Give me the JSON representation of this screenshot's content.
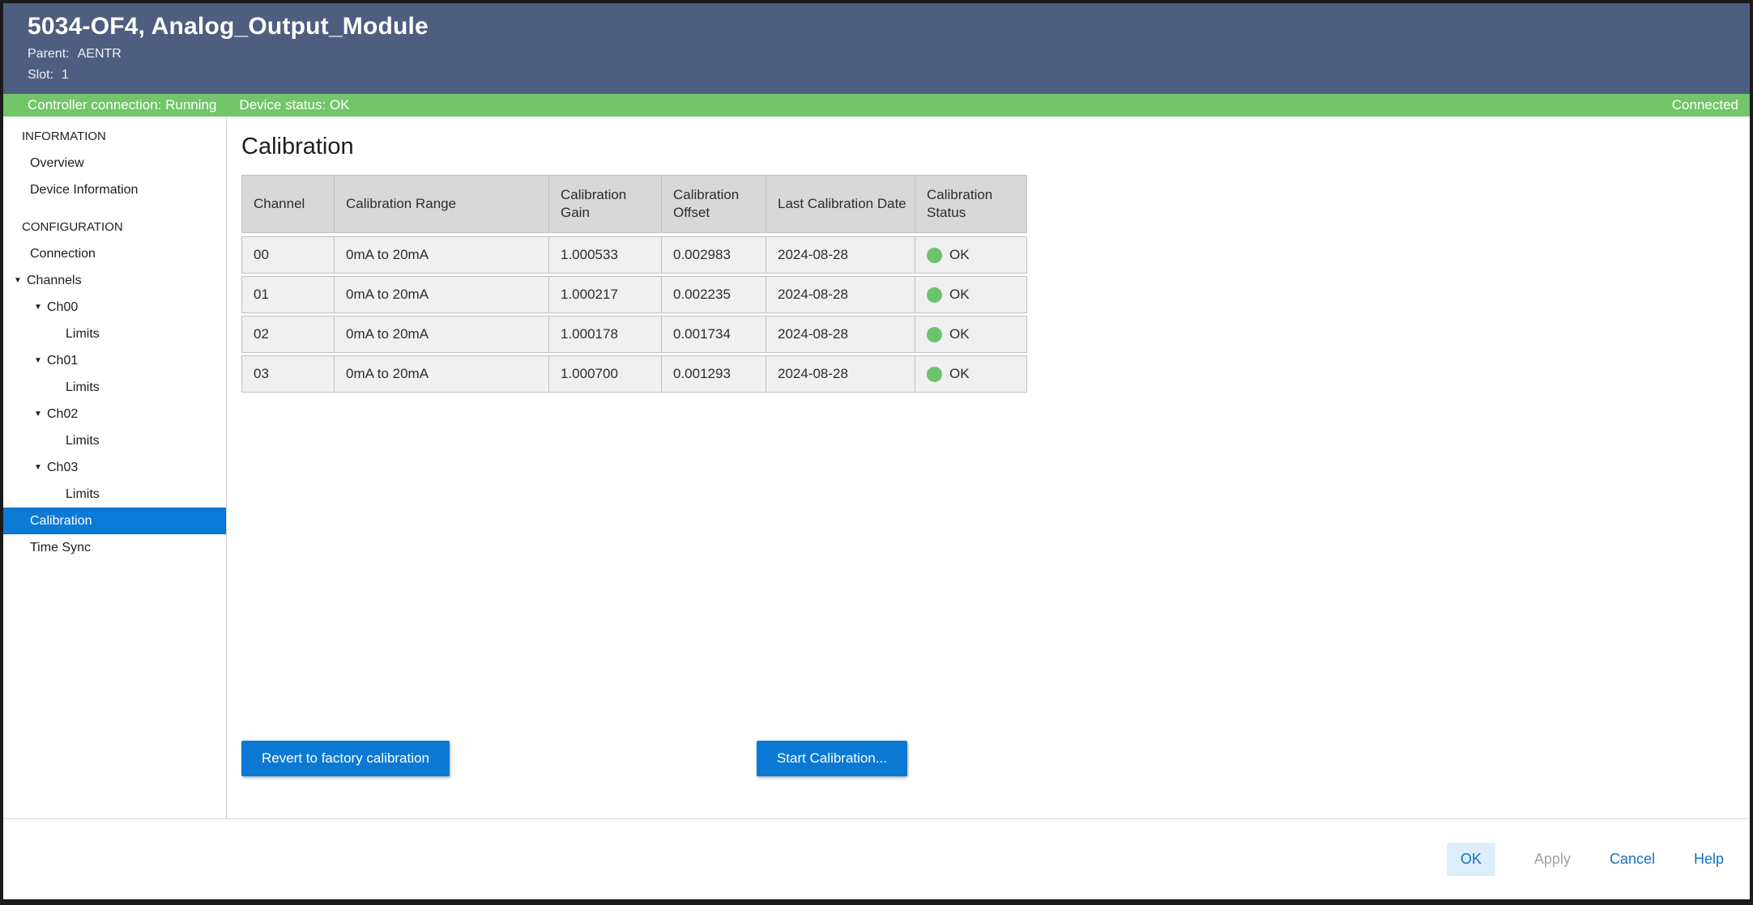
{
  "colors": {
    "titlebar_bg": "#4e5e80",
    "status_bar_bg": "#72c569",
    "accent_blue": "#0b79d3",
    "selected_item_bg": "#0b7ad7",
    "status_ok_green": "#6cc36b",
    "table_header_bg": "#d8d8d8",
    "table_row_bg": "#f0f0f0"
  },
  "icons": {
    "collapse_arrow": "▼"
  },
  "titlebar": {
    "title": "5034-OF4, Analog_Output_Module",
    "parent_label": "Parent:",
    "parent_value": "AENTR",
    "slot_label": "Slot:",
    "slot_value": "1"
  },
  "status_bar": {
    "controller_connection": "Controller connection: Running",
    "device_status": "Device status: OK",
    "connection_state": "Connected"
  },
  "sidebar": {
    "sections": [
      {
        "label": "INFORMATION",
        "items": [
          {
            "label": "Overview"
          },
          {
            "label": "Device Information"
          }
        ]
      },
      {
        "label": "CONFIGURATION",
        "items": [
          {
            "label": "Connection"
          },
          {
            "label": "Channels"
          },
          {
            "label": "Ch00"
          },
          {
            "label": "Limits"
          },
          {
            "label": "Ch01"
          },
          {
            "label": "Limits"
          },
          {
            "label": "Ch02"
          },
          {
            "label": "Limits"
          },
          {
            "label": "Ch03"
          },
          {
            "label": "Limits"
          },
          {
            "label": "Calibration"
          },
          {
            "label": "Time Sync"
          }
        ]
      }
    ]
  },
  "main": {
    "heading": "Calibration",
    "table": {
      "headers": [
        "Channel",
        "Calibration Range",
        "Calibration Gain",
        "Calibration Offset",
        "Last Calibration Date",
        "Calibration Status"
      ],
      "rows": [
        {
          "channel": "00",
          "range": "0mA to 20mA",
          "gain": "1.000533",
          "offset": "0.002983",
          "date": "2024-08-28",
          "status": "OK"
        },
        {
          "channel": "01",
          "range": "0mA to 20mA",
          "gain": "1.000217",
          "offset": "0.002235",
          "date": "2024-08-28",
          "status": "OK"
        },
        {
          "channel": "02",
          "range": "0mA to 20mA",
          "gain": "1.000178",
          "offset": "0.001734",
          "date": "2024-08-28",
          "status": "OK"
        },
        {
          "channel": "03",
          "range": "0mA to 20mA",
          "gain": "1.000700",
          "offset": "0.001293",
          "date": "2024-08-28",
          "status": "OK"
        }
      ]
    },
    "buttons": {
      "revert": "Revert to factory calibration",
      "start": "Start Calibration..."
    }
  },
  "footer": {
    "ok": "OK",
    "apply": "Apply",
    "cancel": "Cancel",
    "help": "Help"
  }
}
